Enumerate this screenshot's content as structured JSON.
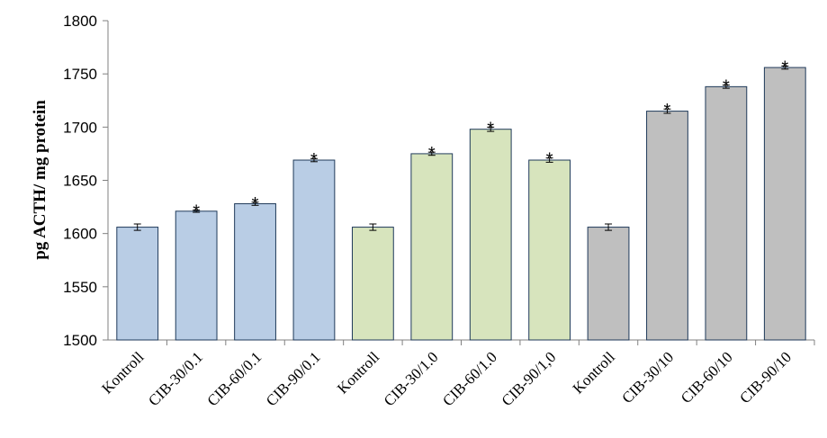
{
  "chart_data": {
    "type": "bar",
    "title": "",
    "xlabel": "",
    "ylabel": "pg ACTH/ mg protein",
    "ylim": [
      1500,
      1800
    ],
    "yticks": [
      1500,
      1550,
      1600,
      1650,
      1700,
      1750,
      1800
    ],
    "grid": false,
    "legend": "none",
    "categories": [
      "Kontroll",
      "CIB-30/0.1",
      "CIB-60/0.1",
      "CIB-90/0.1",
      "Kontroll",
      "CIB-30/1.0",
      "CIB-60/1.0",
      "CIB-90/1,0",
      "Kontroll",
      "CIB-30/10",
      "CIB-60/10",
      "CIB-90/10"
    ],
    "values": [
      1606,
      1621,
      1628,
      1669,
      1606,
      1675,
      1698,
      1669,
      1606,
      1715,
      1738,
      1756
    ],
    "errors": [
      3,
      1,
      1.5,
      1.5,
      3,
      1.5,
      2,
      2,
      3,
      2,
      1.5,
      1.5
    ],
    "significance": [
      "",
      "*",
      "*",
      "*",
      "",
      "*",
      "*",
      "*",
      "",
      "*",
      "*",
      "*"
    ],
    "group_colors": [
      "#b9cde5",
      "#b9cde5",
      "#b9cde5",
      "#b9cde5",
      "#d7e4bd",
      "#d7e4bd",
      "#d7e4bd",
      "#d7e4bd",
      "#bfbfbf",
      "#bfbfbf",
      "#bfbfbf",
      "#bfbfbf"
    ],
    "bar_border_color": "#1f3a5a"
  }
}
